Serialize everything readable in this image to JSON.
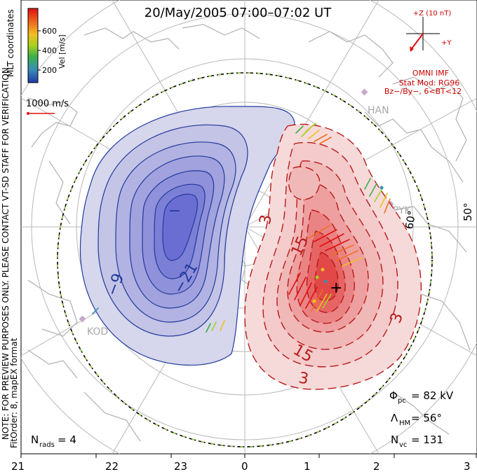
{
  "title": "20/May/2005  07:00–07:02  UT",
  "colorbar": {
    "label": "Vel [m/s]",
    "ticks": [
      "600",
      "400",
      "200"
    ]
  },
  "coords_label": "MLT coordinates",
  "reference_vector": "1000 m/s",
  "imf": {
    "bz_label": "+Z (10 nT)",
    "by_label": "+Y",
    "source": "OMNI IMF",
    "stat_mod": "Stat Mod: RG96",
    "condition": "Bz−/By−, 6<BT<12"
  },
  "sidebar": {
    "note": "NOTE: FOR PREVIEW PURPOSES ONLY. PLEASE CONTACT VT-SD STAFF FOR VERIFICATION.",
    "fitorder": "FitOrder: 8, mapEX format"
  },
  "stats": {
    "phi_label": "Φ",
    "phi_sub": "pc",
    "phi_value": "= 82 kV",
    "lambda_label": "Λ",
    "lambda_sub": "HM",
    "lambda_value": "= 56°",
    "nvc_label": "N",
    "nvc_sub": "vc",
    "nvc_value": "= 131",
    "nrads_label": "N",
    "nrads_sub": "rads",
    "nrads_value": "= 4"
  },
  "lat_labels": [
    "50°",
    "60°"
  ],
  "mlt_ticks": [
    "21",
    "22",
    "23",
    "0",
    "1",
    "2",
    "3"
  ],
  "contour_labels": {
    "negative": [
      "−",
      "−21",
      "−9"
    ],
    "positive": [
      "+",
      "15",
      "3",
      "3",
      "15",
      "3"
    ]
  },
  "stations": [
    "HAN",
    "PYK",
    "KOD"
  ],
  "colors": {
    "negative_contour": "#223a9c",
    "positive_contour": "#b81a1a",
    "text_annotation": "#cc0000",
    "coastline": "#b0b0b0"
  }
}
